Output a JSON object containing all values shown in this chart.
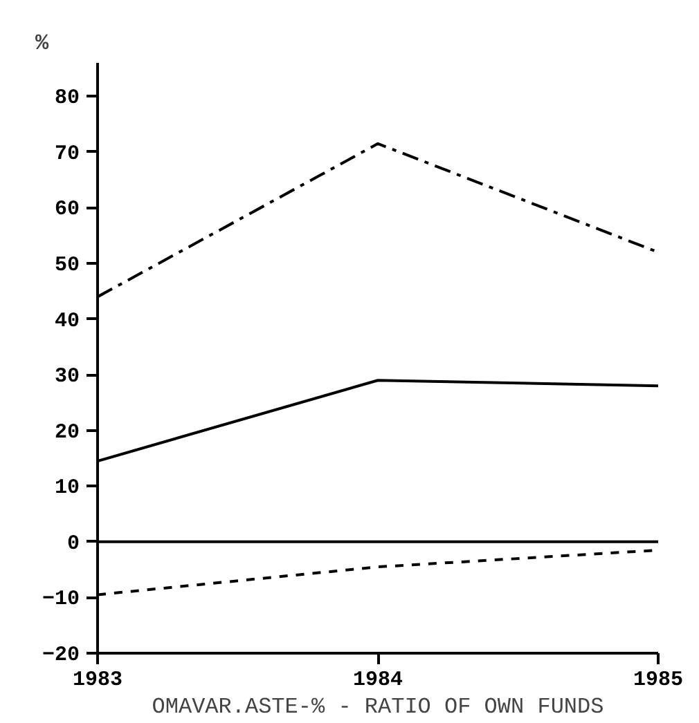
{
  "chart_data": {
    "type": "line",
    "xlabel": "OMAVAR.ASTE-% - RATIO OF OWN FUNDS",
    "ylabel": "%",
    "x": [
      1983,
      1984,
      1985
    ],
    "series": [
      {
        "color": "#000000",
        "line_style": "dashdot",
        "values": [
          44,
          71.5,
          52
        ]
      },
      {
        "color": "#000000",
        "line_style": "solid",
        "values": [
          14.5,
          29,
          28
        ]
      },
      {
        "color": "#000000",
        "line_style": "dashed",
        "values": [
          -9.5,
          -4.5,
          -1.5
        ]
      }
    ],
    "ref_lines": [
      {
        "axis": "y",
        "value": 0,
        "color": "#000000",
        "line_style": "solid"
      }
    ],
    "xlim": [
      1983,
      1985
    ],
    "xticks": [
      1983,
      1984,
      1985
    ],
    "ylim": [
      -20,
      86
    ],
    "yticks": [
      -20,
      -10,
      0,
      10,
      20,
      30,
      40,
      50,
      60,
      70,
      80
    ],
    "grid": false,
    "marker": "none"
  }
}
